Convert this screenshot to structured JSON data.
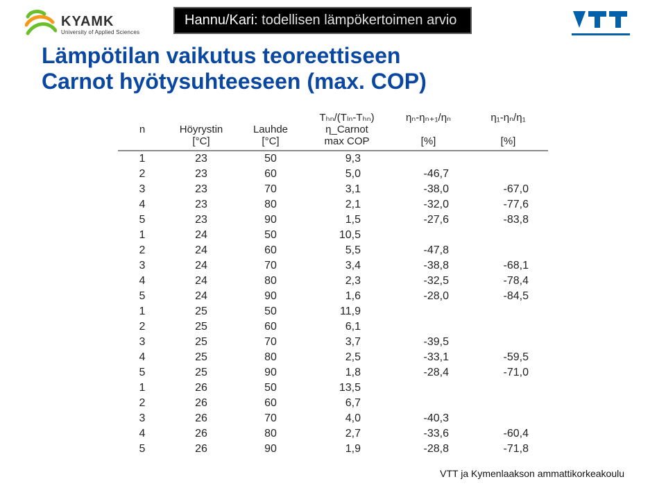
{
  "logos": {
    "kyamk_brand": "KYAMK",
    "kyamk_sub": "University of Applied Sciences",
    "vtt": "VTT"
  },
  "banner": {
    "name": "Hannu/Kari:",
    "rest": "  todellisen lämpökertoimen arvio"
  },
  "heading_line1": "Lämpötilan vaikutus teoreettiseen",
  "heading_line2": "Carnot hyötysuhteeseen (max. COP)",
  "table": {
    "header": {
      "ratio": "Tₕₙ/(Tₗₙ-Tₕₙ)",
      "eta_n": "ηₙ-ηₙ₊₁/ηₙ",
      "eta_1": "η₁-ηₙ/η₁",
      "n": "n",
      "hoy": "Höyrystin",
      "lauhde": "Lauhde",
      "eta_carnot": "η_Carnot",
      "unit_c": "[°C]",
      "maxcop": "max COP",
      "pct": "[%]"
    },
    "rows": [
      {
        "n": "1",
        "a": "23",
        "b": "50",
        "c": "9,3",
        "d": "",
        "e": ""
      },
      {
        "n": "2",
        "a": "23",
        "b": "60",
        "c": "5,0",
        "d": "-46,7",
        "e": ""
      },
      {
        "n": "3",
        "a": "23",
        "b": "70",
        "c": "3,1",
        "d": "-38,0",
        "e": "-67,0"
      },
      {
        "n": "4",
        "a": "23",
        "b": "80",
        "c": "2,1",
        "d": "-32,0",
        "e": "-77,6"
      },
      {
        "n": "5",
        "a": "23",
        "b": "90",
        "c": "1,5",
        "d": "-27,6",
        "e": "-83,8"
      },
      {
        "n": "1",
        "a": "24",
        "b": "50",
        "c": "10,5",
        "d": "",
        "e": ""
      },
      {
        "n": "2",
        "a": "24",
        "b": "60",
        "c": "5,5",
        "d": "-47,8",
        "e": ""
      },
      {
        "n": "3",
        "a": "24",
        "b": "70",
        "c": "3,4",
        "d": "-38,8",
        "e": "-68,1"
      },
      {
        "n": "4",
        "a": "24",
        "b": "80",
        "c": "2,3",
        "d": "-32,5",
        "e": "-78,4"
      },
      {
        "n": "5",
        "a": "24",
        "b": "90",
        "c": "1,6",
        "d": "-28,0",
        "e": "-84,5"
      },
      {
        "n": "1",
        "a": "25",
        "b": "50",
        "c": "11,9",
        "d": "",
        "e": ""
      },
      {
        "n": "2",
        "a": "25",
        "b": "60",
        "c": "6,1",
        "d": "",
        "e": ""
      },
      {
        "n": "3",
        "a": "25",
        "b": "70",
        "c": "3,7",
        "d": "-39,5",
        "e": ""
      },
      {
        "n": "4",
        "a": "25",
        "b": "80",
        "c": "2,5",
        "d": "-33,1",
        "e": "-59,5"
      },
      {
        "n": "5",
        "a": "25",
        "b": "90",
        "c": "1,8",
        "d": "-28,4",
        "e": "-71,0"
      },
      {
        "n": "1",
        "a": "26",
        "b": "50",
        "c": "13,5",
        "d": "",
        "e": ""
      },
      {
        "n": "2",
        "a": "26",
        "b": "60",
        "c": "6,7",
        "d": "",
        "e": ""
      },
      {
        "n": "3",
        "a": "26",
        "b": "70",
        "c": "4,0",
        "d": "-40,3",
        "e": ""
      },
      {
        "n": "4",
        "a": "26",
        "b": "80",
        "c": "2,7",
        "d": "-33,6",
        "e": "-60,4"
      },
      {
        "n": "5",
        "a": "26",
        "b": "90",
        "c": "1,9",
        "d": "-28,8",
        "e": "-71,8"
      }
    ]
  },
  "footer": "VTT ja Kymenlaakson ammattikorkeakoulu",
  "colors": {
    "heading": "#0a47a0",
    "banner_bg": "#000000",
    "banner_border": "#5b5b5b",
    "table_rule": "#8a8a8a",
    "vtt_blue": "#0060a9",
    "kyamk_green": "#6bbf2a",
    "kyamk_orange": "#f39a1d"
  }
}
